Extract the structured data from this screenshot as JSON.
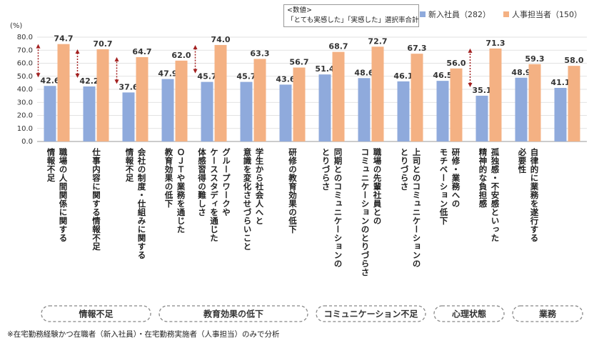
{
  "chart_data": {
    "type": "bar",
    "unit_label": "(%)",
    "note": "<数値>\n「とても実感した」「実感した」選択率合計",
    "footnote": "※在宅勤務経験かつ在職者（新入社員）・在宅勤務実施者（人事担当）のみで分析",
    "categories": [
      "職場の人間関係に関する\n情報不足",
      "仕事内容に関する情報不足",
      "会社の制度・仕組みに関する\n情報不足",
      "ＯＪＴや業務を通じた\n教育効果の低下",
      "グループワークや\nケーススタディを通じた\n体感習得の難しさ",
      "学生から社会人へと\n意識を変化させづらいこと",
      "研修の教育効果の低下",
      "同期とのコミュニケーションの\nとりづらさ",
      "職場の先輩社員との\nコミュニケーションのとりづらさ",
      "上司とのコミュニケーションの\nとりづらさ",
      "研修・業務への\nモチベーション低下",
      "孤独感・不安感といった\n精神的な負担感",
      "自律的に業務を遂行する\n必要性",
      null
    ],
    "category_groups": [
      "情報不足",
      "教育効果の低下",
      "コミュニケーション不足",
      "心理状態",
      "業務"
    ],
    "series": [
      {
        "name": "新入社員（282）",
        "color": "#8faadc",
        "values": [
          42.6,
          42.2,
          37.6,
          47.9,
          45.7,
          45.7,
          43.6,
          51.4,
          48.6,
          46.1,
          46.5,
          35.1,
          48.9,
          41.1
        ],
        "value_labels": [
          "42.6",
          "42.2",
          "37.6",
          "47.9",
          "45.7",
          "45.7",
          "43.6",
          "51.4",
          "48.6",
          "46.1",
          "46.5",
          "35.1",
          "48.9",
          "41.1"
        ]
      },
      {
        "name": "人事担当者（150）",
        "color": "#f4b183",
        "values": [
          74.7,
          70.7,
          64.7,
          62.0,
          74.0,
          63.3,
          56.7,
          68.7,
          72.7,
          67.3,
          56.0,
          71.3,
          59.3,
          58.0
        ],
        "value_labels": [
          "74.7",
          "70.7",
          "64.7",
          "62.0",
          "74.0",
          "63.3",
          "56.7",
          "68.7",
          "72.7",
          "67.3",
          "56.0",
          "71.3",
          "59.3",
          "58.0"
        ]
      }
    ],
    "ylim": [
      0,
      80
    ],
    "yticks": [
      {
        "value": 0,
        "label": "0.0"
      },
      {
        "value": 10,
        "label": "10.0"
      },
      {
        "value": 20,
        "label": "20.0"
      },
      {
        "value": 30,
        "label": "30.0"
      },
      {
        "value": 40,
        "label": "40.0"
      },
      {
        "value": 50,
        "label": "50.0"
      },
      {
        "value": 60,
        "label": "60.0"
      },
      {
        "value": 70,
        "label": "70.0"
      },
      {
        "value": 80,
        "label": "80.0"
      }
    ],
    "grid": true
  }
}
